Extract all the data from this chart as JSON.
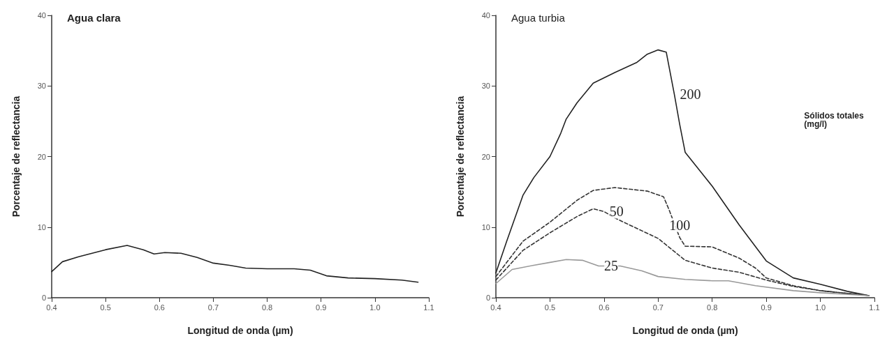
{
  "chart_data": [
    {
      "type": "line",
      "title": "Agua clara",
      "xlabel": "Longitud de onda (µm)",
      "ylabel": "Porcentaje de reflectancia",
      "xlim": [
        0.4,
        1.1
      ],
      "xticks": [
        0.4,
        0.5,
        0.6,
        0.7,
        0.8,
        0.9,
        {
          "value": 1,
          "label": "1.0"
        },
        1.1
      ],
      "ylim": [
        0,
        40
      ],
      "yticks": [
        0,
        10,
        20,
        30,
        40
      ],
      "grid": false,
      "legend": false,
      "marker": "none",
      "line_style": "solid",
      "series": [
        {
          "color": "#222222",
          "x": [
            0.4,
            0.42,
            0.45,
            0.5,
            0.54,
            0.57,
            0.59,
            0.61,
            0.64,
            0.67,
            0.7,
            0.73,
            0.76,
            0.8,
            0.85,
            0.88,
            0.91,
            0.95,
            1.0,
            1.05,
            1.08
          ],
          "values": [
            3.7,
            5.1,
            5.8,
            6.8,
            7.4,
            6.8,
            6.2,
            6.4,
            6.3,
            5.7,
            4.9,
            4.6,
            4.2,
            4.1,
            4.1,
            3.9,
            3.1,
            2.8,
            2.7,
            2.5,
            2.2
          ]
        }
      ]
    },
    {
      "type": "line",
      "title": "Agua turbia",
      "xlabel": "Longitud de onda (µm)",
      "ylabel": "Porcentaje de reflectancia",
      "legend_title": "Sólidos totales (mg/l)",
      "xlim": [
        0.4,
        1.1
      ],
      "xticks": [
        0.4,
        0.5,
        0.6,
        0.7,
        0.8,
        0.9,
        {
          "value": 1,
          "label": "1.0"
        },
        1.1
      ],
      "ylim": [
        0,
        40
      ],
      "yticks": [
        0,
        10,
        20,
        30,
        40
      ],
      "grid": false,
      "legend": false,
      "marker": "none",
      "series": [
        {
          "name": "200",
          "color": "#222222",
          "line_style": "solid",
          "x": [
            0.4,
            0.42,
            0.45,
            0.47,
            0.5,
            0.52,
            0.53,
            0.55,
            0.58,
            0.62,
            0.66,
            0.68,
            0.7,
            0.715,
            0.72,
            0.73,
            0.74,
            0.75,
            0.8,
            0.85,
            0.9,
            0.95,
            1.0,
            1.05,
            1.09
          ],
          "values": [
            3.5,
            8,
            14.5,
            17,
            20,
            23.3,
            25.3,
            27.6,
            30.4,
            31.9,
            33.3,
            34.5,
            35.1,
            34.8,
            32.8,
            28.8,
            24.5,
            20.6,
            15.8,
            10.3,
            5.2,
            2.8,
            1.9,
            0.9,
            0.3
          ]
        },
        {
          "name": "100",
          "color": "#333333",
          "line_style": "dashed",
          "x": [
            0.4,
            0.45,
            0.5,
            0.55,
            0.58,
            0.62,
            0.68,
            0.71,
            0.72,
            0.74,
            0.75,
            0.8,
            0.85,
            0.88,
            0.9,
            0.95,
            1.0,
            1.09
          ],
          "values": [
            3,
            8,
            10.7,
            13.8,
            15.2,
            15.6,
            15.1,
            14.3,
            12.5,
            8.5,
            7.3,
            7.2,
            5.6,
            4.2,
            2.8,
            1.7,
            1,
            0.3
          ]
        },
        {
          "name": "50",
          "color": "#333333",
          "line_style": "dashed",
          "x": [
            0.4,
            0.45,
            0.5,
            0.55,
            0.58,
            0.6,
            0.62,
            0.65,
            0.7,
            0.75,
            0.8,
            0.85,
            0.9,
            0.95,
            1.0,
            1.09
          ],
          "values": [
            2.5,
            6.7,
            9.2,
            11.5,
            12.6,
            12.2,
            11.3,
            10.2,
            8.4,
            5.3,
            4.2,
            3.6,
            2.5,
            1.6,
            1,
            0.3
          ]
        },
        {
          "name": "25",
          "color": "#999999",
          "line_style": "solid",
          "x": [
            0.4,
            0.43,
            0.47,
            0.5,
            0.53,
            0.56,
            0.59,
            0.63,
            0.67,
            0.7,
            0.75,
            0.8,
            0.83,
            0.88,
            0.95,
            1.0,
            1.09
          ],
          "values": [
            2,
            4,
            4.6,
            5,
            5.4,
            5.3,
            4.5,
            4.5,
            3.8,
            3,
            2.6,
            2.4,
            2.4,
            1.7,
            1,
            0.7,
            0.3
          ]
        }
      ]
    }
  ]
}
